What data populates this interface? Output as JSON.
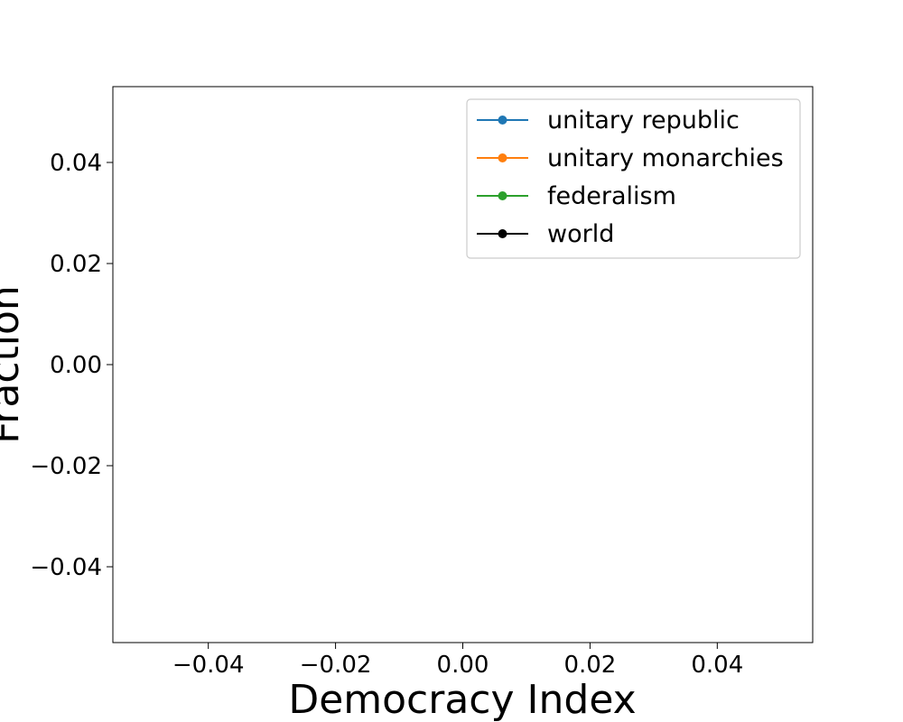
{
  "chart_data": {
    "type": "line",
    "title": "",
    "xlabel": "Democracy Index",
    "ylabel": "Fraction",
    "xlim": [
      -0.055,
      0.055
    ],
    "ylim": [
      -0.055,
      0.055
    ],
    "x_ticks": [
      -0.04,
      -0.02,
      0.0,
      0.02,
      0.04
    ],
    "y_ticks": [
      -0.04,
      -0.02,
      0.0,
      0.02,
      0.04
    ],
    "x_tick_labels": [
      "−0.04",
      "−0.02",
      "0.00",
      "0.02",
      "0.04"
    ],
    "y_tick_labels": [
      "−0.04",
      "−0.02",
      "0.00",
      "0.02",
      "0.04"
    ],
    "grid": false,
    "legend_position": "top-right",
    "series": [
      {
        "name": "unitary republic",
        "color": "#1f77b4",
        "marker": "circle",
        "x": [],
        "y": []
      },
      {
        "name": "unitary monarchies",
        "color": "#ff7f0e",
        "marker": "circle",
        "x": [],
        "y": []
      },
      {
        "name": "federalism",
        "color": "#2ca02c",
        "marker": "circle",
        "x": [],
        "y": []
      },
      {
        "name": "world",
        "color": "#000000",
        "marker": "circle",
        "x": [],
        "y": []
      }
    ]
  }
}
